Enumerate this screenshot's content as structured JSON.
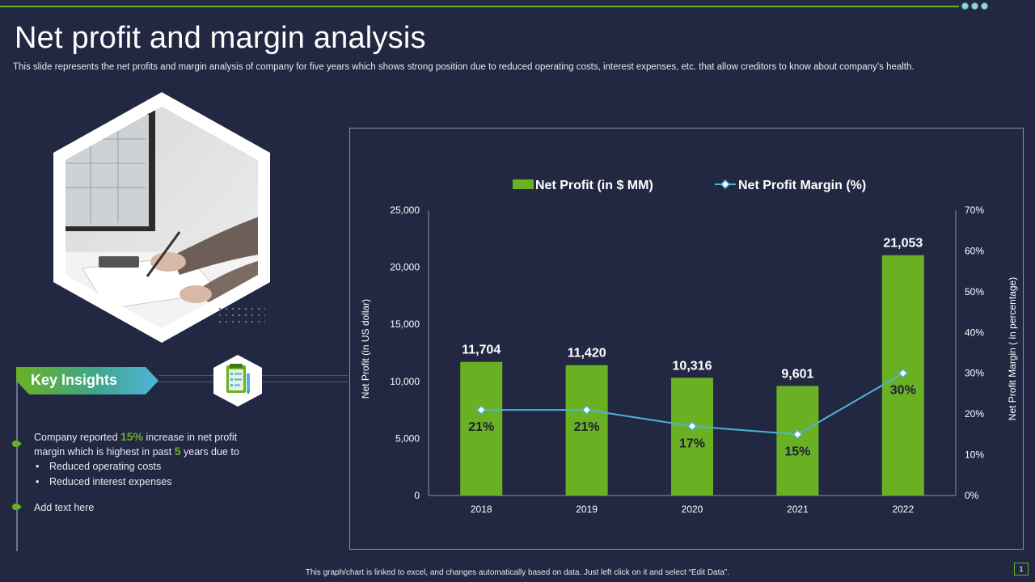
{
  "slide": {
    "title": "Net profit and margin analysis",
    "subtitle": "This slide represents the net profits and margin analysis of company for five years which shows strong position due to reduced operating costs, interest expenses, etc. that allow creditors to know about company’s health.",
    "footer": "This graph/chart is linked to excel, and changes automatically based on data. Just left click on it and select “Edit Data”.",
    "page_number": "1"
  },
  "insights": {
    "heading": "Key Insights",
    "p1_a": "Company reported",
    "p1_hl1": "15%",
    "p1_b": "increase in net profit",
    "p2_a": "margin which is highest in past",
    "p2_hl2": "5",
    "p2_b": "years due to",
    "sub1": "Reduced operating costs",
    "sub2": "Reduced interest expenses",
    "item2": "Add text here"
  },
  "colors": {
    "background": "#222842",
    "accent_green": "#6ab023",
    "line_blue": "#4fb3d9"
  },
  "chart_data": {
    "type": "bar",
    "categories": [
      "2018",
      "2019",
      "2020",
      "2021",
      "2022"
    ],
    "series": [
      {
        "name": "Net Profit (in $ MM)",
        "type": "bar",
        "axis": "left",
        "values": [
          11704,
          11420,
          10316,
          9601,
          21053
        ],
        "labels": [
          "11,704",
          "11,420",
          "10,316",
          "9,601",
          "21,053"
        ]
      },
      {
        "name": "Net Profit Margin (%)",
        "type": "line",
        "axis": "right",
        "values": [
          21,
          21,
          17,
          15,
          30
        ],
        "labels": [
          "21%",
          "21%",
          "17%",
          "15%",
          "30%"
        ]
      }
    ],
    "ylabel": "Net Profit  (in US dollar)",
    "y2label": "Net Profit Margin  ( in percentage)",
    "ylim": [
      0,
      25000
    ],
    "y2lim": [
      0,
      70
    ],
    "yticks": [
      "0",
      "5,000",
      "10,000",
      "15,000",
      "20,000",
      "25,000"
    ],
    "y2ticks": [
      "0%",
      "10%",
      "20%",
      "30%",
      "40%",
      "50%",
      "60%",
      "70%"
    ],
    "legend_position": "top-center",
    "grid": false
  }
}
